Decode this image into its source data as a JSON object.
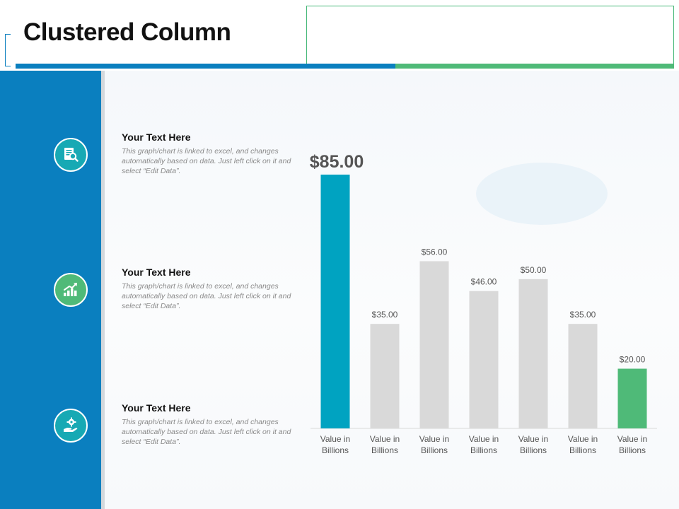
{
  "header": {
    "title": "Clustered Column"
  },
  "colors": {
    "brand_blue": "#0a7fbf",
    "brand_green": "#4fba78",
    "highlight_teal": "#00a3c1",
    "bar_gray": "#d9d9d9"
  },
  "text_blocks": [
    {
      "icon": "document-search-icon",
      "title": "Your Text Here",
      "body": "This graph/chart is linked to excel, and changes automatically based on data. Just left click on it and select “Edit Data”."
    },
    {
      "icon": "growth-chart-icon",
      "title": "Your Text Here",
      "body": "This graph/chart is linked to excel, and changes automatically based on data. Just left click on it and select “Edit Data”."
    },
    {
      "icon": "gear-hand-icon",
      "title": "Your Text Here",
      "body": "This graph/chart is linked to excel, and changes automatically based on data. Just left click on it and select “Edit Data”."
    }
  ],
  "chart_data": {
    "type": "bar",
    "categories": [
      "Value in Billions",
      "Value in Billions",
      "Value in Billions",
      "Value in Billions",
      "Value in Billions",
      "Value in Billions",
      "Value in Billions"
    ],
    "values": [
      85,
      35,
      56,
      46,
      50,
      35,
      20
    ],
    "data_labels": [
      "$85.00",
      "$35.00",
      "$56.00",
      "$46.00",
      "$50.00",
      "$35.00",
      "$20.00"
    ],
    "bar_colors": [
      "#00a3c1",
      "#d9d9d9",
      "#d9d9d9",
      "#d9d9d9",
      "#d9d9d9",
      "#d9d9d9",
      "#4fba78"
    ],
    "title": "",
    "xlabel": "",
    "ylabel": "",
    "ylim": [
      0,
      85
    ],
    "grid": false,
    "legend": "none"
  }
}
